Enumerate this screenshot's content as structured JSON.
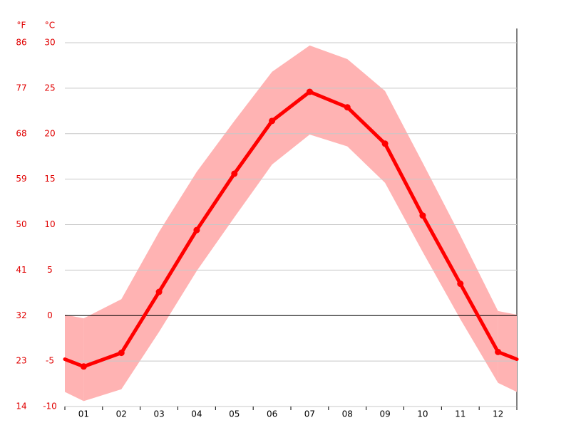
{
  "chart_data": {
    "type": "line",
    "categories": [
      "01",
      "02",
      "03",
      "04",
      "05",
      "06",
      "07",
      "08",
      "09",
      "10",
      "11",
      "12"
    ],
    "values": [
      -5.6,
      -4.1,
      2.6,
      9.4,
      15.6,
      21.4,
      24.6,
      22.9,
      18.9,
      11.0,
      3.5,
      -4.0
    ],
    "band_max": [
      -0.3,
      1.8,
      9.2,
      15.8,
      21.4,
      26.8,
      29.7,
      28.2,
      24.7,
      16.8,
      8.8,
      0.5
    ],
    "band_min": [
      -9.4,
      -8.1,
      -1.8,
      4.9,
      10.8,
      16.6,
      19.9,
      18.6,
      14.6,
      7.0,
      -0.4,
      -7.4
    ],
    "color": "#ff0000",
    "band_color": "#ffb3b3",
    "y_unit": "°C",
    "y2_unit": "°F",
    "ylim": [
      -10,
      30
    ],
    "yticks": [
      -10,
      -5,
      0,
      5,
      10,
      15,
      20,
      25,
      30
    ],
    "y2lim": [
      14,
      86
    ],
    "y2ticks": [
      14,
      23,
      32,
      41,
      50,
      59,
      68,
      77,
      86
    ],
    "grid": true
  }
}
